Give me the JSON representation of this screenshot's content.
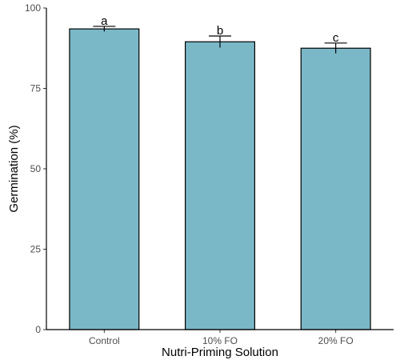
{
  "chart_data": {
    "type": "bar",
    "title": "",
    "xlabel": "Nutri-Priming Solution",
    "ylabel": "Germination (%)",
    "categories": [
      "Control",
      "10% FO",
      "20% FO"
    ],
    "values": [
      93.5,
      89.5,
      87.5
    ],
    "errors": [
      0.8,
      1.8,
      1.6
    ],
    "significance_labels": [
      "a",
      "b",
      "c"
    ],
    "ylim": [
      0,
      100
    ],
    "yticks": [
      "0",
      "25",
      "50",
      "75",
      "100"
    ],
    "grid": false,
    "legend": "none",
    "colors": {
      "bar_fill": "#7ab8c7",
      "bar_stroke": "#000000",
      "axis": "#000000"
    }
  }
}
